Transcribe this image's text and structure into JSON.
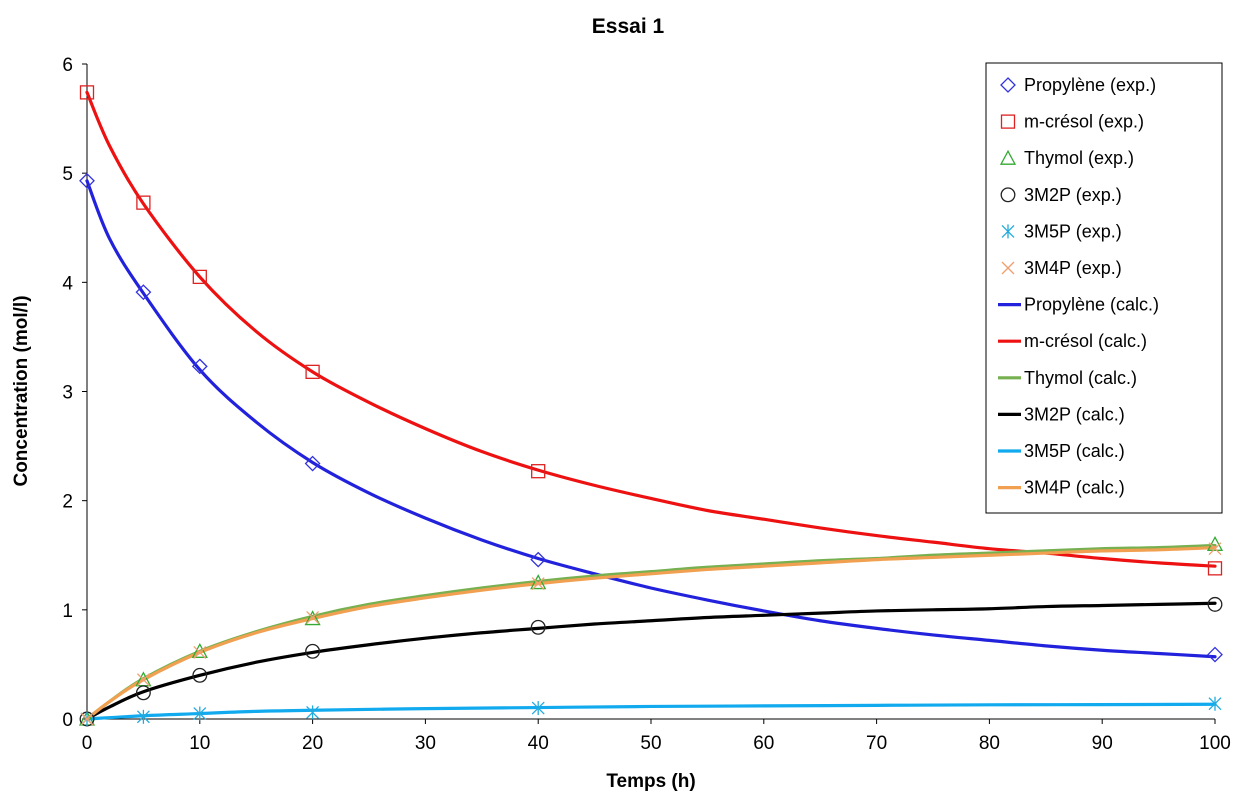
{
  "chart_data": {
    "type": "scatter",
    "title": "Essai 1",
    "xlabel": "Temps (h)",
    "ylabel": "Concentration (mol/l)",
    "xlim": [
      0,
      100
    ],
    "ylim": [
      0,
      6
    ],
    "xticks": [
      "0",
      "10",
      "20",
      "30",
      "40",
      "50",
      "60",
      "70",
      "80",
      "90",
      "100"
    ],
    "yticks": [
      "0",
      "1",
      "2",
      "3",
      "4",
      "5",
      "6"
    ],
    "grid": false,
    "legend_position": "top-right",
    "experimental_series": [
      {
        "name": "Propylène (exp.)",
        "marker": "diamond",
        "color": "#3333dd",
        "points": [
          [
            0,
            4.93
          ],
          [
            5,
            3.91
          ],
          [
            10,
            3.23
          ],
          [
            20,
            2.34
          ],
          [
            40,
            1.46
          ],
          [
            100,
            0.59
          ]
        ]
      },
      {
        "name": "m-crésol (exp.)",
        "marker": "square",
        "color": "#dd2222",
        "points": [
          [
            0,
            5.74
          ],
          [
            5,
            4.73
          ],
          [
            10,
            4.05
          ],
          [
            20,
            3.18
          ],
          [
            40,
            2.27
          ],
          [
            100,
            1.38
          ]
        ]
      },
      {
        "name": "Thymol (exp.)",
        "marker": "triangle",
        "color": "#33aa33",
        "points": [
          [
            0,
            0.0
          ],
          [
            5,
            0.36
          ],
          [
            10,
            0.62
          ],
          [
            20,
            0.92
          ],
          [
            40,
            1.25
          ],
          [
            100,
            1.6
          ]
        ]
      },
      {
        "name": "3M2P (exp.)",
        "marker": "circle",
        "color": "#222222",
        "points": [
          [
            0,
            0.0
          ],
          [
            5,
            0.24
          ],
          [
            10,
            0.4
          ],
          [
            20,
            0.62
          ],
          [
            40,
            0.84
          ],
          [
            100,
            1.05
          ]
        ]
      },
      {
        "name": "3M5P (exp.)",
        "marker": "asterisk",
        "color": "#22aadd",
        "points": [
          [
            0,
            0.0
          ],
          [
            5,
            0.02
          ],
          [
            10,
            0.05
          ],
          [
            20,
            0.06
          ],
          [
            40,
            0.1
          ],
          [
            100,
            0.14
          ]
        ]
      },
      {
        "name": "3M4P (exp.)",
        "marker": "x",
        "color": "#f0a070",
        "points": [
          [
            0,
            0.0
          ],
          [
            5,
            0.36
          ],
          [
            10,
            0.61
          ],
          [
            20,
            0.93
          ],
          [
            40,
            1.24
          ],
          [
            100,
            1.56
          ]
        ]
      }
    ],
    "calculated_series": [
      {
        "name": "Propylène (calc.)",
        "color": "#2222dd",
        "points": [
          [
            0,
            4.93
          ],
          [
            2,
            4.4
          ],
          [
            5,
            3.9
          ],
          [
            10,
            3.2
          ],
          [
            15,
            2.72
          ],
          [
            20,
            2.35
          ],
          [
            25,
            2.07
          ],
          [
            30,
            1.84
          ],
          [
            35,
            1.64
          ],
          [
            40,
            1.47
          ],
          [
            45,
            1.33
          ],
          [
            50,
            1.2
          ],
          [
            55,
            1.09
          ],
          [
            60,
            0.99
          ],
          [
            65,
            0.9
          ],
          [
            70,
            0.83
          ],
          [
            75,
            0.77
          ],
          [
            80,
            0.72
          ],
          [
            85,
            0.67
          ],
          [
            90,
            0.63
          ],
          [
            95,
            0.6
          ],
          [
            100,
            0.57
          ]
        ]
      },
      {
        "name": "m-crésol (calc.)",
        "color": "#ee1111",
        "points": [
          [
            0,
            5.74
          ],
          [
            2,
            5.25
          ],
          [
            5,
            4.72
          ],
          [
            10,
            4.05
          ],
          [
            15,
            3.55
          ],
          [
            20,
            3.18
          ],
          [
            25,
            2.9
          ],
          [
            30,
            2.66
          ],
          [
            35,
            2.45
          ],
          [
            40,
            2.28
          ],
          [
            45,
            2.14
          ],
          [
            50,
            2.02
          ],
          [
            55,
            1.91
          ],
          [
            60,
            1.83
          ],
          [
            65,
            1.75
          ],
          [
            70,
            1.68
          ],
          [
            75,
            1.62
          ],
          [
            80,
            1.56
          ],
          [
            85,
            1.52
          ],
          [
            90,
            1.47
          ],
          [
            95,
            1.43
          ],
          [
            100,
            1.4
          ]
        ]
      },
      {
        "name": "Thymol (calc.)",
        "color": "#77b050",
        "points": [
          [
            0,
            0.0
          ],
          [
            2,
            0.16
          ],
          [
            5,
            0.37
          ],
          [
            10,
            0.62
          ],
          [
            15,
            0.8
          ],
          [
            20,
            0.94
          ],
          [
            25,
            1.05
          ],
          [
            30,
            1.13
          ],
          [
            35,
            1.2
          ],
          [
            40,
            1.26
          ],
          [
            45,
            1.31
          ],
          [
            50,
            1.35
          ],
          [
            55,
            1.39
          ],
          [
            60,
            1.42
          ],
          [
            65,
            1.45
          ],
          [
            70,
            1.47
          ],
          [
            75,
            1.5
          ],
          [
            80,
            1.52
          ],
          [
            85,
            1.54
          ],
          [
            90,
            1.56
          ],
          [
            95,
            1.57
          ],
          [
            100,
            1.59
          ]
        ]
      },
      {
        "name": "3M2P (calc.)",
        "color": "#000000",
        "points": [
          [
            0,
            0.0
          ],
          [
            2,
            0.11
          ],
          [
            5,
            0.25
          ],
          [
            10,
            0.4
          ],
          [
            15,
            0.52
          ],
          [
            20,
            0.61
          ],
          [
            25,
            0.68
          ],
          [
            30,
            0.74
          ],
          [
            35,
            0.79
          ],
          [
            40,
            0.83
          ],
          [
            45,
            0.87
          ],
          [
            50,
            0.9
          ],
          [
            55,
            0.93
          ],
          [
            60,
            0.95
          ],
          [
            65,
            0.97
          ],
          [
            70,
            0.99
          ],
          [
            75,
            1.0
          ],
          [
            80,
            1.01
          ],
          [
            85,
            1.03
          ],
          [
            90,
            1.04
          ],
          [
            95,
            1.05
          ],
          [
            100,
            1.06
          ]
        ]
      },
      {
        "name": "3M5P (calc.)",
        "color": "#11aaee",
        "points": [
          [
            0,
            0.0
          ],
          [
            5,
            0.03
          ],
          [
            10,
            0.05
          ],
          [
            15,
            0.07
          ],
          [
            20,
            0.08
          ],
          [
            30,
            0.095
          ],
          [
            40,
            0.105
          ],
          [
            50,
            0.115
          ],
          [
            60,
            0.12
          ],
          [
            70,
            0.125
          ],
          [
            80,
            0.13
          ],
          [
            90,
            0.132
          ],
          [
            100,
            0.135
          ]
        ]
      },
      {
        "name": "3M4P (calc.)",
        "color": "#f0a050",
        "points": [
          [
            0,
            0.0
          ],
          [
            2,
            0.16
          ],
          [
            5,
            0.36
          ],
          [
            10,
            0.61
          ],
          [
            15,
            0.79
          ],
          [
            20,
            0.92
          ],
          [
            25,
            1.03
          ],
          [
            30,
            1.11
          ],
          [
            35,
            1.18
          ],
          [
            40,
            1.24
          ],
          [
            45,
            1.29
          ],
          [
            50,
            1.33
          ],
          [
            55,
            1.37
          ],
          [
            60,
            1.4
          ],
          [
            65,
            1.43
          ],
          [
            70,
            1.46
          ],
          [
            75,
            1.48
          ],
          [
            80,
            1.5
          ],
          [
            85,
            1.52
          ],
          [
            90,
            1.54
          ],
          [
            95,
            1.55
          ],
          [
            100,
            1.57
          ]
        ]
      }
    ]
  }
}
